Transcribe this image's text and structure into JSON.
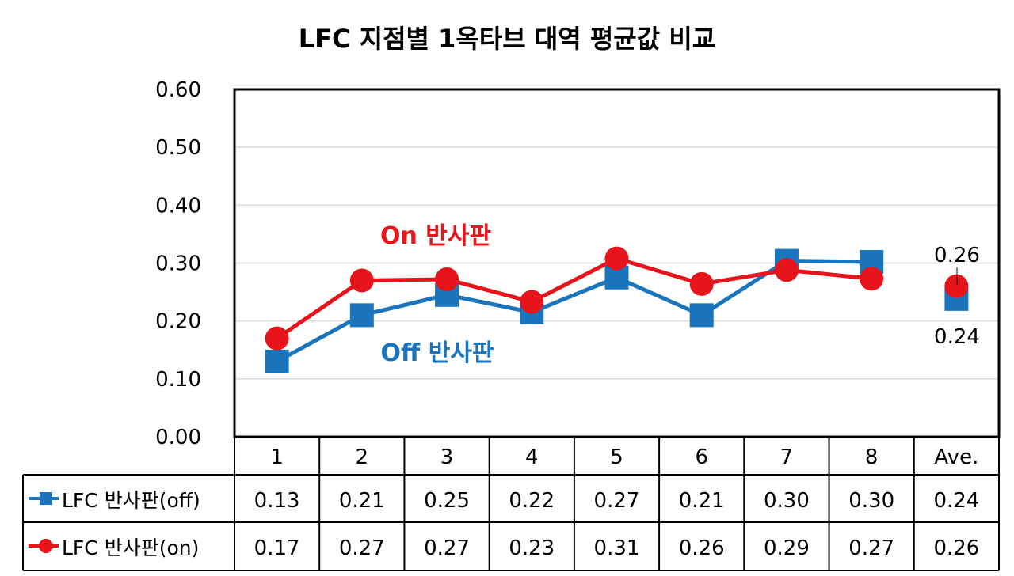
{
  "chart_data": {
    "type": "line",
    "title": "LFC 지점별 1옥타브 대역 평균값 비교",
    "categories": [
      "1",
      "2",
      "3",
      "4",
      "5",
      "6",
      "7",
      "8",
      "Ave."
    ],
    "ylim": [
      0,
      0.6
    ],
    "yticks": [
      "0.00",
      "0.10",
      "0.20",
      "0.30",
      "0.40",
      "0.50",
      "0.60"
    ],
    "grid": true,
    "series": [
      {
        "name": "LFC 반사판(off)",
        "color": "#1b75bc",
        "marker": "square",
        "values": [
          0.13,
          0.21,
          0.245,
          0.215,
          0.275,
          0.21,
          0.304,
          0.302,
          0.238
        ],
        "table_values": [
          "0.13",
          "0.21",
          "0.25",
          "0.22",
          "0.27",
          "0.21",
          "0.30",
          "0.30",
          "0.24"
        ]
      },
      {
        "name": "LFC 반사판(on)",
        "color": "#e8141c",
        "marker": "circle",
        "values": [
          0.17,
          0.27,
          0.272,
          0.233,
          0.308,
          0.264,
          0.288,
          0.273,
          0.26
        ],
        "table_values": [
          "0.17",
          "0.27",
          "0.27",
          "0.23",
          "0.31",
          "0.26",
          "0.29",
          "0.27",
          "0.26"
        ]
      }
    ],
    "annotations": {
      "on_label": "On 반사판",
      "off_label": "Off 반사판",
      "ave_on": "0.26",
      "ave_off": "0.24"
    }
  }
}
